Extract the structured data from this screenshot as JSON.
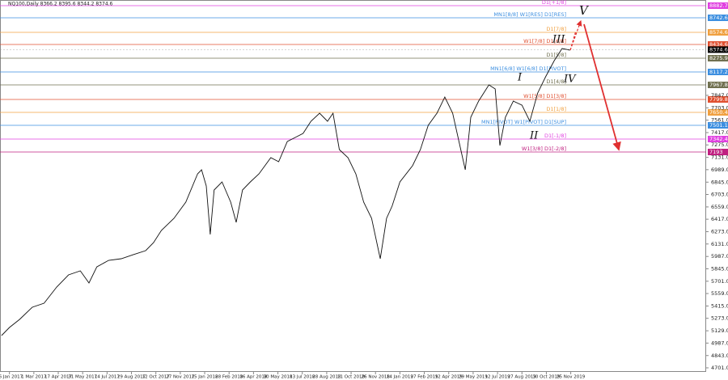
{
  "chart_data": {
    "type": "line",
    "title": "NQ100,Daily  8366.2 8395.6 8344.2 8374.6",
    "last_price": 8374.6,
    "x": [
      -10,
      0,
      13,
      29,
      44,
      60,
      75,
      90,
      101,
      111,
      126,
      142,
      157,
      173,
      183,
      193,
      209,
      224,
      239,
      244,
      250,
      255,
      260,
      270,
      281,
      288,
      296,
      306,
      317,
      332,
      342,
      353,
      363,
      373,
      383,
      394,
      404,
      411,
      419,
      430,
      440,
      450,
      460,
      471,
      479,
      486,
      496,
      512,
      522,
      532,
      543,
      553,
      563,
      571,
      579,
      586,
      596,
      609,
      617,
      623,
      630,
      640,
      651,
      661,
      671,
      681,
      692,
      702,
      712
    ],
    "series": [
      {
        "name": "NQ100",
        "color": "#111111",
        "values": [
          5074,
          5167,
          5261,
          5401,
          5447,
          5634,
          5774,
          5821,
          5681,
          5867,
          5942,
          5961,
          6007,
          6054,
          6147,
          6288,
          6428,
          6614,
          6941,
          6988,
          6801,
          6241,
          6754,
          6848,
          6614,
          6381,
          6754,
          6848,
          6941,
          7128,
          7081,
          7314,
          7361,
          7408,
          7548,
          7641,
          7548,
          7641,
          7221,
          7128,
          6941,
          6614,
          6428,
          5961,
          6428,
          6568,
          6848,
          7034,
          7221,
          7501,
          7641,
          7828,
          7641,
          7314,
          6988,
          7594,
          7781,
          7968,
          7921,
          7268,
          7594,
          7781,
          7734,
          7548,
          7874,
          8061,
          8248,
          8388,
          8369
        ]
      }
    ],
    "xlim": [
      -12,
      885
    ],
    "ylim": [
      4654,
      8948
    ],
    "xticks": [
      {
        "value": 0,
        "label": "16 Jan 2017"
      },
      {
        "value": 31,
        "label": "1 Mar 2017"
      },
      {
        "value": 62,
        "label": "17 Apr 2017"
      },
      {
        "value": 93,
        "label": "31 May 2017"
      },
      {
        "value": 124,
        "label": "14 Jul 2017"
      },
      {
        "value": 155,
        "label": "29 Aug 2017"
      },
      {
        "value": 186,
        "label": "12 Oct 2017"
      },
      {
        "value": 217,
        "label": "27 Nov 2017"
      },
      {
        "value": 248,
        "label": "15 Jan 2018"
      },
      {
        "value": 279,
        "label": "28 Feb 2018"
      },
      {
        "value": 310,
        "label": "16 Apr 2018"
      },
      {
        "value": 341,
        "label": "30 May 2018"
      },
      {
        "value": 372,
        "label": "13 Jul 2018"
      },
      {
        "value": 403,
        "label": "28 Aug 2018"
      },
      {
        "value": 434,
        "label": "11 Oct 2018"
      },
      {
        "value": 465,
        "label": "26 Nov 2018"
      },
      {
        "value": 496,
        "label": "14 Jan 2019"
      },
      {
        "value": 527,
        "label": "27 Feb 2019"
      },
      {
        "value": 558,
        "label": "12 Apr 2019"
      },
      {
        "value": 589,
        "label": "29 May 2019"
      },
      {
        "value": 620,
        "label": "12 Jul 2019"
      },
      {
        "value": 651,
        "label": "27 Aug 2019"
      },
      {
        "value": 682,
        "label": "10 Oct 2019"
      },
      {
        "value": 713,
        "label": "25 Nov 2019"
      }
    ],
    "yticks": [
      {
        "value": 7847,
        "label": "7847.0"
      },
      {
        "value": 7703,
        "label": "7703.0"
      },
      {
        "value": 7561,
        "label": "7561.0"
      },
      {
        "value": 7417,
        "label": "7417.0"
      },
      {
        "value": 7275,
        "label": "7275.0"
      },
      {
        "value": 7131,
        "label": "7131.0"
      },
      {
        "value": 6989,
        "label": "6989.0"
      },
      {
        "value": 6845,
        "label": "6845.0"
      },
      {
        "value": 6703,
        "label": "6703.0"
      },
      {
        "value": 6559,
        "label": "6559.0"
      },
      {
        "value": 6417,
        "label": "6417.0"
      },
      {
        "value": 6273,
        "label": "6273.0"
      },
      {
        "value": 6131,
        "label": "6131.0"
      },
      {
        "value": 5987,
        "label": "5987.0"
      },
      {
        "value": 5845,
        "label": "5845.0"
      },
      {
        "value": 5701,
        "label": "5701.0"
      },
      {
        "value": 5559,
        "label": "5559.0"
      },
      {
        "value": 5415,
        "label": "5415.0"
      },
      {
        "value": 5273,
        "label": "5273.0"
      },
      {
        "value": 5129,
        "label": "5129.0"
      },
      {
        "value": 4987,
        "label": "4987.0"
      },
      {
        "value": 4843,
        "label": "4843.0"
      },
      {
        "value": 4701,
        "label": "4701.0"
      }
    ],
    "levels": [
      {
        "label": "D1[+1/8]",
        "value": 8882.7,
        "color": "#e040e0"
      },
      {
        "label": "MN1[8/8] W1[RES] D1[RES]",
        "value": 8742.6,
        "color": "#3d8fe0"
      },
      {
        "label": "D1[7/8]",
        "value": 8574.6,
        "color": "#f0a040"
      },
      {
        "label": "W1[7/8] D1[6/8]",
        "value": 8434.6,
        "color": "#e05030"
      },
      {
        "label": "D1[5/8]",
        "value": 8275.9,
        "color": "#707050"
      },
      {
        "label": "MN1[6/8] W1[6/8] D1[PIVOT]",
        "value": 8117.2,
        "color": "#3d8fe0"
      },
      {
        "label": "D1[4/8]",
        "value": 7967.8,
        "color": "#707050"
      },
      {
        "label": "W1[5/8] D1[3/8]",
        "value": 7799.8,
        "color": "#e05030"
      },
      {
        "label": "D1[1/8]",
        "value": 7650.4,
        "color": "#f0a040"
      },
      {
        "label": "MN1[PIVOT] W1[PIVOT] D1[SUP]",
        "value": 7501.1,
        "color": "#3d8fe0"
      },
      {
        "label": "D1[-1/8]",
        "value": 7342.4,
        "color": "#e040e0"
      },
      {
        "label": "W1[3/8] D1[-2/8]",
        "value": 7193.0,
        "color": "#c02080"
      }
    ],
    "waves": [
      "I",
      "II",
      "III",
      "IV",
      "V"
    ]
  }
}
